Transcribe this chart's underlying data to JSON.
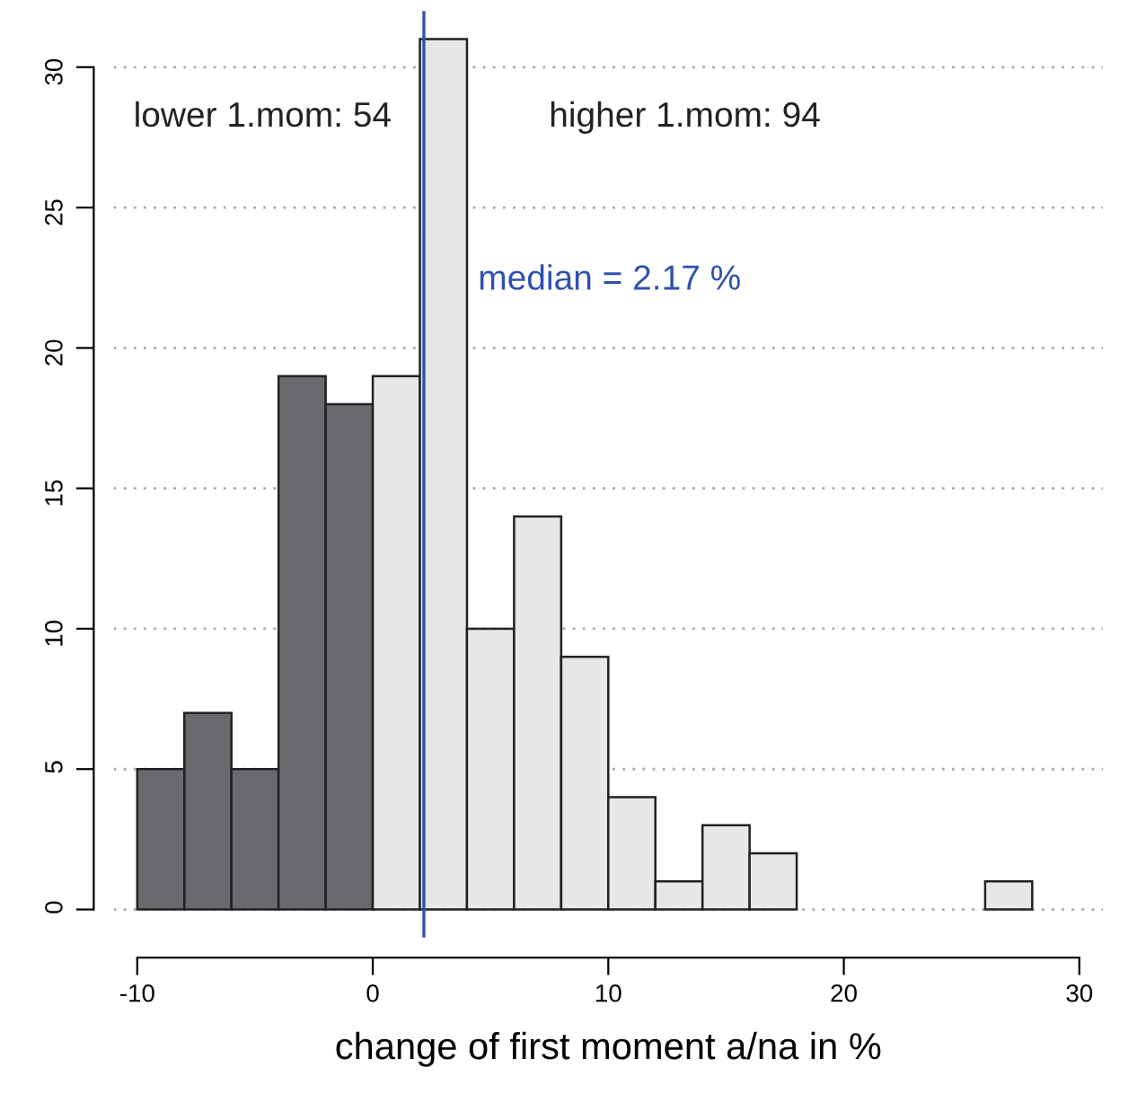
{
  "chart_data": {
    "type": "histogram",
    "xlabel": "change of first moment a/na in %",
    "bins": [
      -10,
      -8,
      -6,
      -4,
      -2,
      0,
      2,
      4,
      6,
      8,
      10,
      12,
      14,
      16,
      18,
      20,
      22,
      24,
      26,
      28
    ],
    "values": [
      5,
      7,
      5,
      19,
      18,
      19,
      31,
      10,
      14,
      9,
      4,
      1,
      3,
      2,
      0,
      0,
      0,
      0,
      1
    ],
    "colors": [
      "#696a6d",
      "#696a6d",
      "#696a6d",
      "#696a6d",
      "#696a6d",
      "#e6e7e9",
      "#e6e7e9",
      "#e6e7e9",
      "#e6e7e9",
      "#e6e7e9",
      "#e6e7e9",
      "#e6e7e9",
      "#e6e7e9",
      "#e6e7e9",
      "#e6e7e9",
      "#e6e7e9",
      "#e6e7e9",
      "#e6e7e9",
      "#e6e7e9"
    ],
    "xlim": [
      -11,
      31
    ],
    "ylim": [
      -1,
      32
    ],
    "xticks": [
      -10,
      0,
      10,
      20,
      30
    ],
    "yticks": [
      0,
      5,
      10,
      15,
      20,
      25,
      30
    ],
    "grid": "y",
    "ref_lines": [
      {
        "axis": "x",
        "value": 2.17,
        "label": "median = 2.17 %",
        "color": "#3050b0"
      }
    ],
    "annotations": [
      "lower 1.mom: 54",
      "higher 1.mom: 94"
    ]
  }
}
